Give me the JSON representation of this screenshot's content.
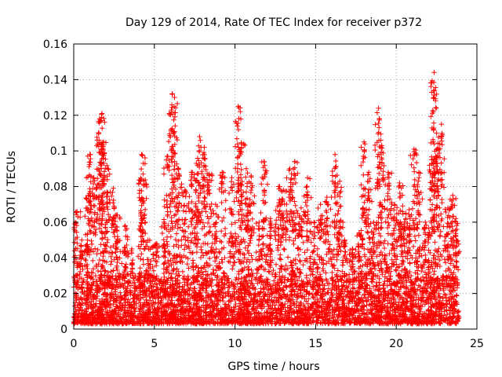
{
  "chart_data": {
    "type": "scatter",
    "title": "Day 129 of 2014, Rate Of TEC Index for receiver p372",
    "xlabel": "GPS time / hours",
    "ylabel": "ROTI / TECUs",
    "xlim": [
      0,
      25
    ],
    "ylim": [
      0,
      0.16
    ],
    "x_ticks": [
      0,
      5,
      10,
      15,
      20,
      25
    ],
    "x_tick_labels": [
      "0",
      "5",
      "10",
      "15",
      "20",
      "25"
    ],
    "y_ticks": [
      0,
      0.02,
      0.04,
      0.06,
      0.08,
      0.1,
      0.12,
      0.14,
      0.16
    ],
    "y_tick_labels": [
      "0",
      "0.02",
      "0.04",
      "0.06",
      "0.08",
      "0.1",
      "0.12",
      "0.14",
      "0.16"
    ],
    "grid": true,
    "marker": "+",
    "color": "#ff0000",
    "series": [
      {
        "name": "ROTI",
        "peaks": [
          {
            "x": 0.2,
            "y": 0.066
          },
          {
            "x": 0.5,
            "y": 0.05
          },
          {
            "x": 0.9,
            "y": 0.075
          },
          {
            "x": 1.0,
            "y": 0.098
          },
          {
            "x": 1.25,
            "y": 0.085
          },
          {
            "x": 1.6,
            "y": 0.118
          },
          {
            "x": 1.75,
            "y": 0.121
          },
          {
            "x": 1.85,
            "y": 0.105
          },
          {
            "x": 2.1,
            "y": 0.09
          },
          {
            "x": 2.45,
            "y": 0.079
          },
          {
            "x": 2.7,
            "y": 0.064
          },
          {
            "x": 3.2,
            "y": 0.058
          },
          {
            "x": 3.6,
            "y": 0.045
          },
          {
            "x": 4.2,
            "y": 0.098
          },
          {
            "x": 4.3,
            "y": 0.087
          },
          {
            "x": 4.6,
            "y": 0.05
          },
          {
            "x": 5.1,
            "y": 0.048
          },
          {
            "x": 5.6,
            "y": 0.06
          },
          {
            "x": 5.8,
            "y": 0.097
          },
          {
            "x": 6.1,
            "y": 0.132
          },
          {
            "x": 6.25,
            "y": 0.13
          },
          {
            "x": 6.5,
            "y": 0.09
          },
          {
            "x": 6.9,
            "y": 0.078
          },
          {
            "x": 7.3,
            "y": 0.088
          },
          {
            "x": 7.6,
            "y": 0.093
          },
          {
            "x": 7.8,
            "y": 0.108
          },
          {
            "x": 8.1,
            "y": 0.102
          },
          {
            "x": 8.4,
            "y": 0.087
          },
          {
            "x": 8.8,
            "y": 0.07
          },
          {
            "x": 9.2,
            "y": 0.088
          },
          {
            "x": 9.8,
            "y": 0.085
          },
          {
            "x": 10.2,
            "y": 0.125
          },
          {
            "x": 10.4,
            "y": 0.104
          },
          {
            "x": 10.7,
            "y": 0.09
          },
          {
            "x": 11.0,
            "y": 0.086
          },
          {
            "x": 11.5,
            "y": 0.06
          },
          {
            "x": 11.8,
            "y": 0.094
          },
          {
            "x": 12.2,
            "y": 0.062
          },
          {
            "x": 12.7,
            "y": 0.08
          },
          {
            "x": 13.0,
            "y": 0.078
          },
          {
            "x": 13.4,
            "y": 0.09
          },
          {
            "x": 13.7,
            "y": 0.094
          },
          {
            "x": 14.1,
            "y": 0.068
          },
          {
            "x": 14.5,
            "y": 0.085
          },
          {
            "x": 14.9,
            "y": 0.06
          },
          {
            "x": 15.3,
            "y": 0.07
          },
          {
            "x": 15.7,
            "y": 0.074
          },
          {
            "x": 16.2,
            "y": 0.098
          },
          {
            "x": 16.5,
            "y": 0.083
          },
          {
            "x": 16.8,
            "y": 0.05
          },
          {
            "x": 17.3,
            "y": 0.045
          },
          {
            "x": 17.7,
            "y": 0.054
          },
          {
            "x": 18.0,
            "y": 0.105
          },
          {
            "x": 18.3,
            "y": 0.088
          },
          {
            "x": 18.6,
            "y": 0.06
          },
          {
            "x": 18.9,
            "y": 0.124
          },
          {
            "x": 19.1,
            "y": 0.103
          },
          {
            "x": 19.5,
            "y": 0.088
          },
          {
            "x": 19.9,
            "y": 0.07
          },
          {
            "x": 20.2,
            "y": 0.082
          },
          {
            "x": 20.5,
            "y": 0.06
          },
          {
            "x": 20.8,
            "y": 0.067
          },
          {
            "x": 21.1,
            "y": 0.101
          },
          {
            "x": 21.4,
            "y": 0.088
          },
          {
            "x": 21.8,
            "y": 0.06
          },
          {
            "x": 22.2,
            "y": 0.095
          },
          {
            "x": 22.35,
            "y": 0.144
          },
          {
            "x": 22.5,
            "y": 0.11
          },
          {
            "x": 22.8,
            "y": 0.115
          },
          {
            "x": 23.2,
            "y": 0.068
          },
          {
            "x": 23.5,
            "y": 0.075
          },
          {
            "x": 23.7,
            "y": 0.062
          }
        ],
        "baseline": {
          "x_start": 0.0,
          "x_end": 23.8,
          "min": 0.003,
          "max": 0.03
        }
      }
    ]
  }
}
